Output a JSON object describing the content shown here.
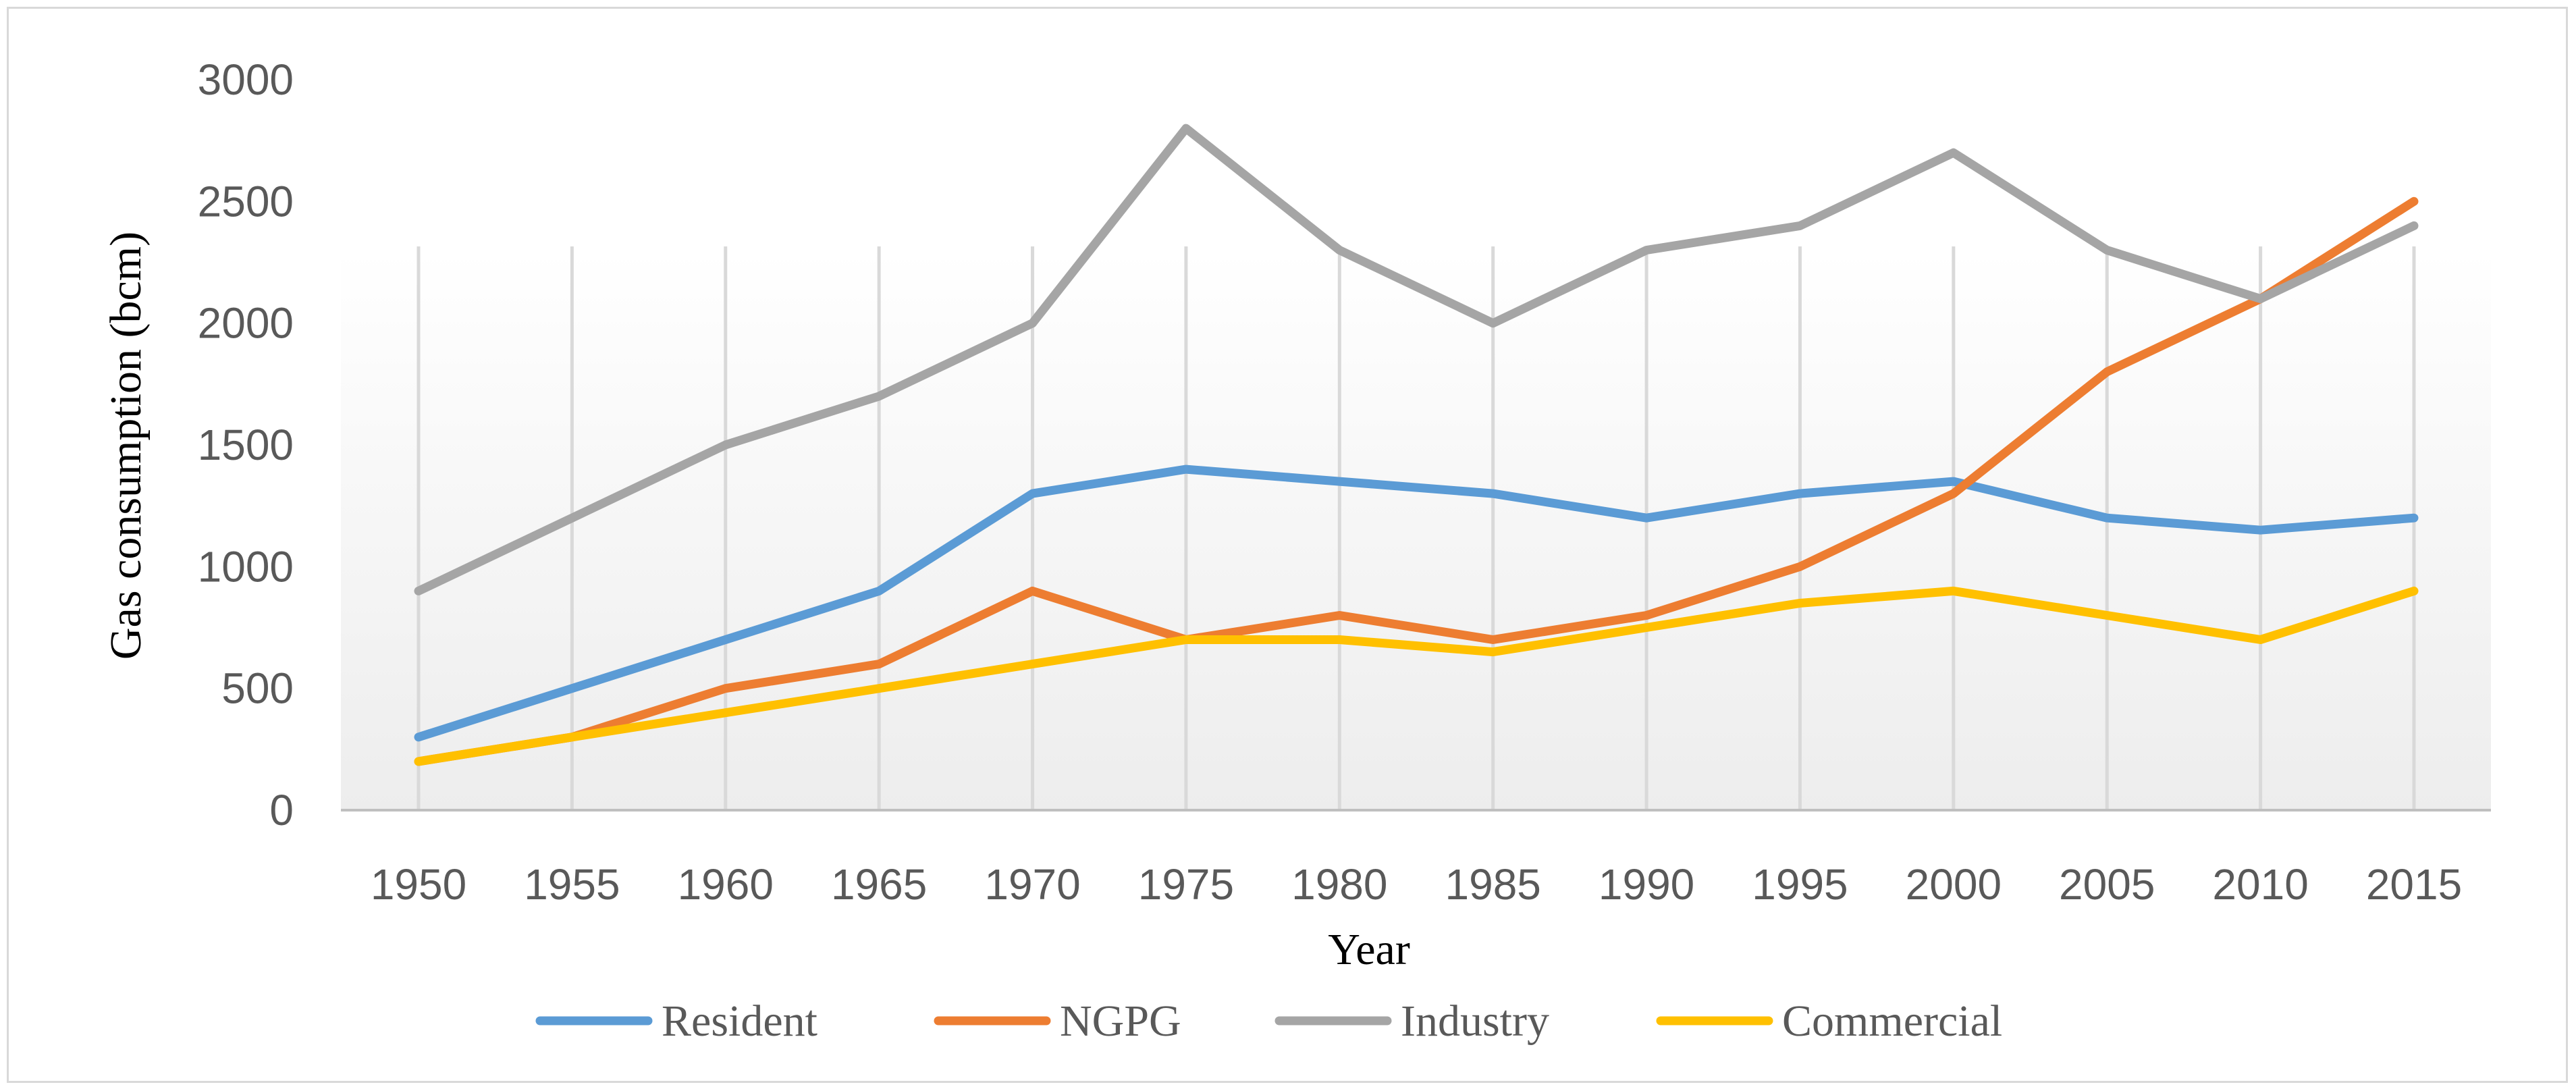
{
  "chart_data": {
    "type": "line",
    "title": "",
    "xlabel": "Year",
    "ylabel": "Gas consumption (bcm)",
    "ylim": [
      0,
      3000
    ],
    "yticks": [
      0,
      500,
      1000,
      1500,
      2000,
      2500,
      3000
    ],
    "ytick_labels": [
      "0",
      "500",
      "1000",
      "1500",
      "2000",
      "2500",
      "3000"
    ],
    "categories": [
      "1950",
      "1955",
      "1960",
      "1965",
      "1970",
      "1975",
      "1980",
      "1985",
      "1990",
      "1995",
      "2000",
      "2005",
      "2010",
      "2015"
    ],
    "grid": "vertical",
    "legend_position": "bottom",
    "series": [
      {
        "name": "Resident",
        "color": "#5b9bd5",
        "values": [
          300,
          500,
          700,
          900,
          1300,
          1400,
          1350,
          1300,
          1200,
          1300,
          1350,
          1200,
          1150,
          1200
        ]
      },
      {
        "name": "NGPG",
        "color": "#ed7d31",
        "values": [
          200,
          300,
          500,
          600,
          900,
          700,
          800,
          700,
          800,
          1000,
          1300,
          1800,
          2100,
          2500
        ]
      },
      {
        "name": "Industry",
        "color": "#a5a5a5",
        "values": [
          900,
          1200,
          1500,
          1700,
          2000,
          2800,
          2300,
          2000,
          2300,
          2400,
          2700,
          2300,
          2100,
          2400
        ]
      },
      {
        "name": "Commercial",
        "color": "#ffc000",
        "values": [
          200,
          300,
          400,
          500,
          600,
          700,
          700,
          650,
          750,
          850,
          900,
          800,
          700,
          900
        ]
      }
    ]
  }
}
